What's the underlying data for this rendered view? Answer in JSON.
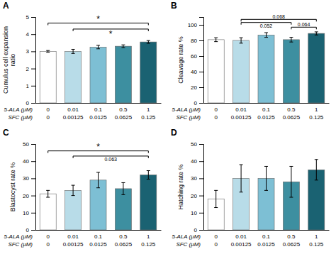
{
  "chart_data": [
    {
      "type": "bar",
      "title": "A",
      "categories": [
        "0",
        "0.01",
        "0.1",
        "0.5",
        "1"
      ],
      "categories2": [
        "0",
        "0.00125",
        "0.0125",
        "0.0625",
        "0.125"
      ],
      "xlabel": "5-ALA (μM)",
      "xlabel2": "SFC (μM)",
      "ylabel": "Cumulus cell expansion\nratio",
      "values": [
        3.0,
        3.0,
        3.25,
        3.3,
        3.55
      ],
      "errors": [
        0.05,
        0.12,
        0.1,
        0.08,
        0.08
      ],
      "colors": [
        "#ffffff",
        "#b8dce8",
        "#7dbfd4",
        "#3d8fa0",
        "#1a6272"
      ],
      "ylim": [
        0,
        5
      ],
      "yticks": [
        0,
        1,
        2,
        3,
        4,
        5
      ],
      "grid": false,
      "annotations": [
        {
          "x1": 0,
          "x2": 4,
          "y": 4.65,
          "text": "*"
        },
        {
          "x1": 1,
          "x2": 4,
          "y": 4.3,
          "text": "*"
        }
      ]
    },
    {
      "type": "bar",
      "title": "B",
      "categories": [
        "0",
        "0.01",
        "0.1",
        "0.5",
        "1"
      ],
      "categories2": [
        "0",
        "0.00125",
        "0.0125",
        "0.0625",
        "0.125"
      ],
      "xlabel": "5-ALA (μM)",
      "xlabel2": "SFC (μM)",
      "ylabel": "Cleavage rate %",
      "values": [
        81,
        80,
        87,
        81,
        89
      ],
      "errors": [
        2.5,
        3.5,
        3.0,
        3.0,
        2.0
      ],
      "colors": [
        "#ffffff",
        "#b8dce8",
        "#7dbfd4",
        "#3d8fa0",
        "#1a6272"
      ],
      "ylim": [
        0,
        110
      ],
      "yticks": [
        0,
        20,
        40,
        60,
        80,
        100
      ],
      "grid": false,
      "annotations": [
        {
          "x1": 1,
          "x2": 4,
          "y": 107,
          "text": "0.068"
        },
        {
          "x1": 1,
          "x2": 3,
          "y": 103,
          "text": "0.052"
        },
        {
          "x1": 3,
          "x2": 4,
          "y": 97,
          "text": "0.064"
        }
      ]
    },
    {
      "type": "bar",
      "title": "C",
      "categories": [
        "0",
        "0.01",
        "0.1",
        "0.5",
        "1"
      ],
      "categories2": [
        "0",
        "0.00125",
        "0.0125",
        "0.0625",
        "0.125"
      ],
      "xlabel": "5-ALA (μM)",
      "xlabel2": "SFC (μM)",
      "ylabel": "Blastocyst rate %",
      "values": [
        21,
        23,
        29,
        24,
        32
      ],
      "errors": [
        2.0,
        3.0,
        4.5,
        3.5,
        2.5
      ],
      "colors": [
        "#ffffff",
        "#b8dce8",
        "#7dbfd4",
        "#3d8fa0",
        "#1a6272"
      ],
      "ylim": [
        0,
        50
      ],
      "yticks": [
        0,
        10,
        20,
        30,
        40,
        50
      ],
      "grid": false,
      "annotations": [
        {
          "x1": 0,
          "x2": 4,
          "y": 46,
          "text": "*"
        },
        {
          "x1": 1,
          "x2": 4,
          "y": 43,
          "text": "0.063"
        }
      ]
    },
    {
      "type": "bar",
      "title": "D",
      "categories": [
        "0",
        "0.01",
        "0.1",
        "0.5",
        "1"
      ],
      "categories2": [
        "0",
        "0.00125",
        "0.0125",
        "0.0625",
        "0.125"
      ],
      "xlabel": "5-ALA (μM)",
      "xlabel2": "SFC (μM)",
      "ylabel": "Hatching rate %",
      "values": [
        18,
        30,
        30,
        28,
        35
      ],
      "errors": [
        5.0,
        8.0,
        7.0,
        9.0,
        6.0
      ],
      "colors": [
        "#ffffff",
        "#b8dce8",
        "#7dbfd4",
        "#3d8fa0",
        "#1a6272"
      ],
      "ylim": [
        0,
        50
      ],
      "yticks": [
        0,
        10,
        20,
        30,
        40,
        50
      ],
      "grid": false
    }
  ]
}
